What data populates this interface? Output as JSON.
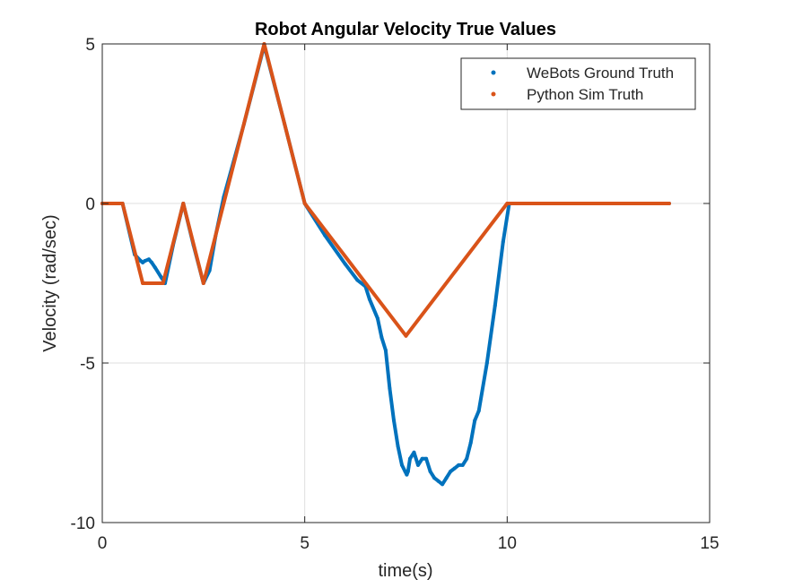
{
  "chart_data": {
    "type": "scatter",
    "title": "Robot Angular Velocity True Values",
    "xlabel": "time(s)",
    "ylabel": "Velocity (rad/sec)",
    "xlim": [
      0,
      15
    ],
    "ylim": [
      -10,
      5
    ],
    "xticks": [
      0,
      5,
      10,
      15
    ],
    "xtick_labels": [
      "0",
      "5",
      "10",
      "15"
    ],
    "yticks": [
      -10,
      -5,
      0,
      5
    ],
    "ytick_labels": [
      "-10",
      "-5",
      "0",
      "5"
    ],
    "grid": true,
    "legend_position": "top-right",
    "series": [
      {
        "name": "WeBots Ground Truth",
        "color": "#0072BD",
        "x": [
          0,
          0.5,
          0.8,
          0.95,
          1.0,
          1.05,
          1.15,
          1.22,
          1.3,
          1.45,
          1.55,
          1.75,
          2.0,
          2.25,
          2.5,
          2.65,
          2.8,
          3.0,
          3.5,
          4.0,
          4.5,
          5.0,
          5.5,
          6.0,
          6.3,
          6.5,
          6.6,
          6.8,
          6.9,
          7.0,
          7.1,
          7.2,
          7.3,
          7.4,
          7.48,
          7.52,
          7.55,
          7.6,
          7.7,
          7.8,
          7.9,
          8.0,
          8.1,
          8.2,
          8.3,
          8.4,
          8.5,
          8.6,
          8.7,
          8.8,
          8.9,
          9.0,
          9.1,
          9.2,
          9.3,
          9.5,
          9.7,
          9.9,
          10.05,
          10.3,
          11.0,
          12.0,
          13.0,
          14.0
        ],
        "y": [
          0,
          0,
          -1.6,
          -1.8,
          -1.85,
          -1.8,
          -1.75,
          -1.85,
          -2.0,
          -2.3,
          -2.5,
          -1.3,
          0,
          -1.3,
          -2.5,
          -2.1,
          -1.0,
          0.2,
          2.5,
          4.95,
          2.5,
          0,
          -1.0,
          -1.9,
          -2.4,
          -2.6,
          -3.0,
          -3.6,
          -4.2,
          -4.6,
          -5.8,
          -6.8,
          -7.6,
          -8.2,
          -8.4,
          -8.5,
          -8.4,
          -8.0,
          -7.8,
          -8.2,
          -8.0,
          -8.0,
          -8.4,
          -8.6,
          -8.7,
          -8.8,
          -8.6,
          -8.4,
          -8.3,
          -8.2,
          -8.2,
          -8.0,
          -7.5,
          -6.8,
          -6.5,
          -5.0,
          -3.2,
          -1.2,
          0,
          0,
          0,
          0,
          0,
          0
        ]
      },
      {
        "name": "Python Sim Truth",
        "color": "#D95319",
        "x": [
          0,
          0.5,
          1.0,
          1.5,
          2.0,
          2.5,
          4.0,
          5.0,
          7.5,
          10.0,
          14.0
        ],
        "y": [
          0,
          0,
          -2.5,
          -2.5,
          0,
          -2.5,
          5.0,
          0,
          -4.15,
          0,
          0
        ]
      }
    ]
  }
}
